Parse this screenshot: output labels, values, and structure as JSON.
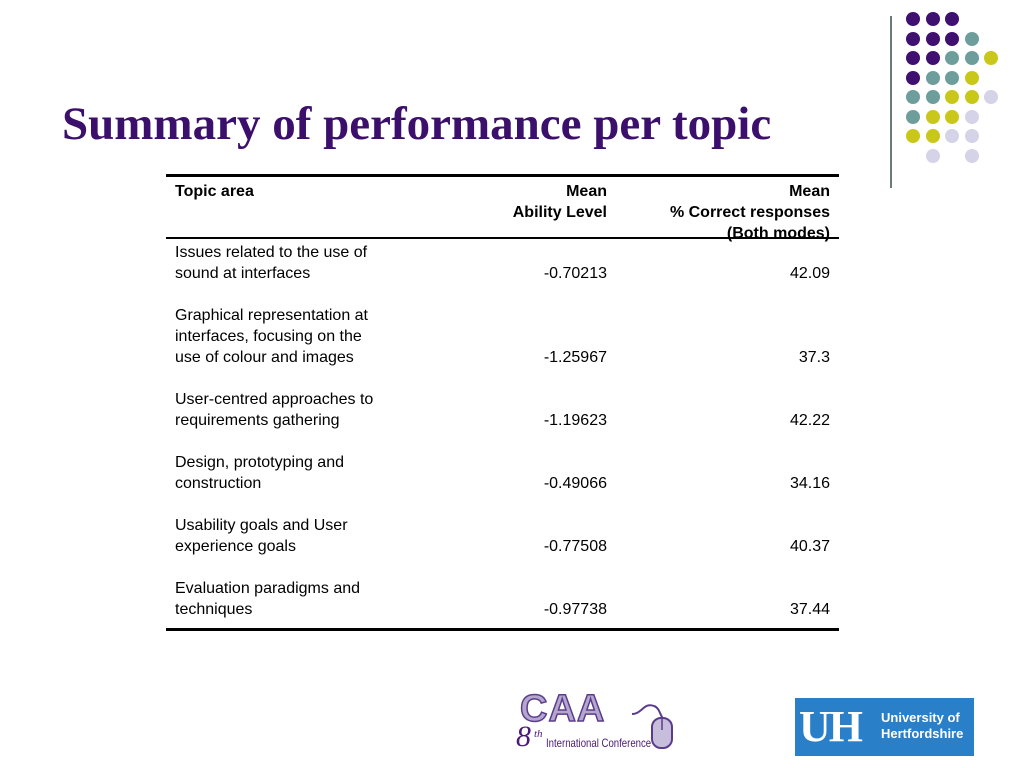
{
  "slide": {
    "title": "Summary of performance per topic"
  },
  "colors": {
    "title": "#3b0f6b",
    "dot_purple": "#3f1070",
    "dot_teal": "#6e9e9c",
    "dot_yellow": "#c9c81a",
    "dot_lavender": "#d4d3e8",
    "divider": "#6c7a7a",
    "uh_blue": "#2a7fc9"
  },
  "table": {
    "headers": {
      "topic": "Topic area",
      "ability_line1": "Mean",
      "ability_line2": "Ability Level",
      "correct_line1": "Mean",
      "correct_line2": "% Correct responses",
      "correct_line3": "(Both modes)"
    },
    "rows": [
      {
        "topic": [
          "Issues related to the use of",
          "sound at interfaces"
        ],
        "ability": "-0.70213",
        "correct": "42.09"
      },
      {
        "topic": [
          "Graphical representation at",
          "interfaces, focusing on the",
          "use of colour and images"
        ],
        "ability": "-1.25967",
        "correct": "37.3"
      },
      {
        "topic": [
          "User-centred approaches to",
          "requirements gathering"
        ],
        "ability": "-1.19623",
        "correct": "42.22"
      },
      {
        "topic": [
          "Design, prototyping and",
          "construction"
        ],
        "ability": "-0.49066",
        "correct": "34.16"
      },
      {
        "topic": [
          "Usability goals and User",
          "experience goals"
        ],
        "ability": "-0.77508",
        "correct": "40.37"
      },
      {
        "topic": [
          "Evaluation paradigms and",
          "techniques"
        ],
        "ability": "-0.97738",
        "correct": "37.44"
      }
    ]
  },
  "logos": {
    "caa": {
      "wordmark": "CAA",
      "number": "8",
      "ordinal": "th",
      "subtitle": "International Conference"
    },
    "uh": {
      "mark": "UH",
      "line1": "University of",
      "line2": "Hertfordshire"
    }
  },
  "decoration": {
    "dot_rows": [
      [
        "purple",
        "purple",
        "purple",
        null,
        null
      ],
      [
        "purple",
        "purple",
        "purple",
        "teal",
        null
      ],
      [
        "purple",
        "purple",
        "teal",
        "teal",
        "yellow"
      ],
      [
        "purple",
        "teal",
        "teal",
        "yellow",
        null
      ],
      [
        "teal",
        "teal",
        "yellow",
        "yellow",
        "lavender"
      ],
      [
        "teal",
        "yellow",
        "yellow",
        "lavender",
        null
      ],
      [
        "yellow",
        "yellow",
        "lavender",
        "lavender",
        null
      ],
      [
        null,
        "lavender",
        null,
        "lavender",
        null
      ]
    ]
  }
}
